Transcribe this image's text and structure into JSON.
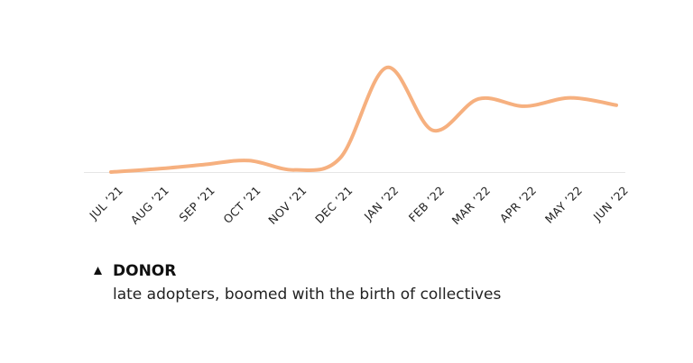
{
  "chart_data": {
    "type": "line",
    "categories": [
      "JUL ’21",
      "AUG ’21",
      "SEP ’21",
      "OCT ’21",
      "NOV ’21",
      "DEC ’21",
      "JAN ’22",
      "FEB ’22",
      "MAR ’22",
      "APR ’22",
      "MAY ’22",
      "JUN ’22"
    ],
    "series": [
      {
        "name": "DONOR",
        "color": "#f6b07f",
        "values": [
          0,
          3,
          7,
          11,
          2,
          14,
          100,
          40,
          70,
          63,
          71,
          64
        ]
      }
    ],
    "annotation": "late adopters, boomed with the birth of collectives"
  }
}
